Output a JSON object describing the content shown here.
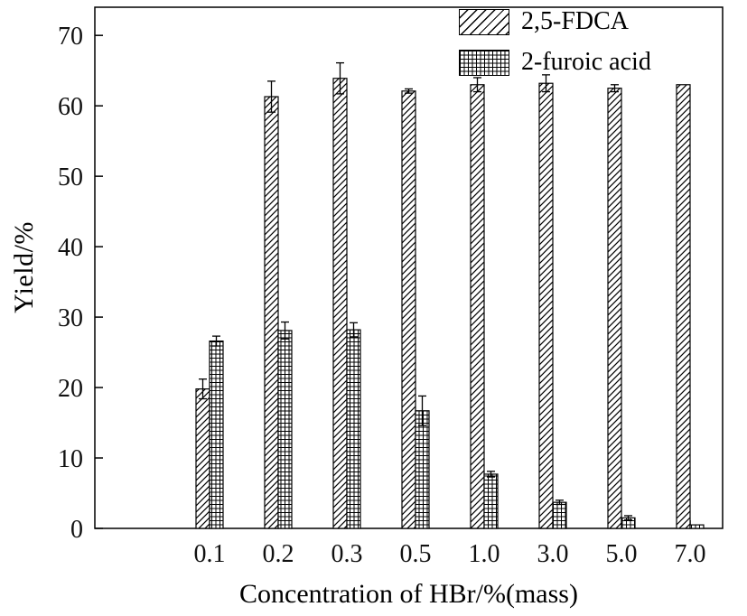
{
  "figure": {
    "background": "#ffffff",
    "ink_color": "#000000"
  },
  "chart_data": {
    "type": "bar",
    "title": "",
    "xlabel": "Concentration of HBr/%(mass)",
    "ylabel": "Yield/%",
    "categories": [
      "0.1",
      "0.2",
      "0.3",
      "0.5",
      "1.0",
      "3.0",
      "5.0",
      "7.0"
    ],
    "series": [
      {
        "name": "2,5-FDCA",
        "fill_pattern": "diagonal-hatch",
        "values": [
          19.8,
          61.3,
          63.9,
          62.1,
          63.0,
          63.2,
          62.5,
          63.0
        ],
        "errors": [
          1.4,
          2.2,
          2.2,
          0.3,
          1.0,
          1.2,
          0.5,
          0
        ]
      },
      {
        "name": "2-furoic acid",
        "fill_pattern": "grid-hatch",
        "values": [
          26.6,
          28.1,
          28.2,
          16.7,
          7.7,
          3.7,
          1.5,
          0.5
        ],
        "errors": [
          0.7,
          1.2,
          1.0,
          2.1,
          0.4,
          0.3,
          0.3,
          0
        ]
      }
    ],
    "ylim": [
      0,
      74
    ],
    "yticks": [
      0,
      10,
      20,
      30,
      40,
      50,
      60,
      70
    ],
    "error_bars": true,
    "legend_position": "top-right",
    "grid": false
  }
}
